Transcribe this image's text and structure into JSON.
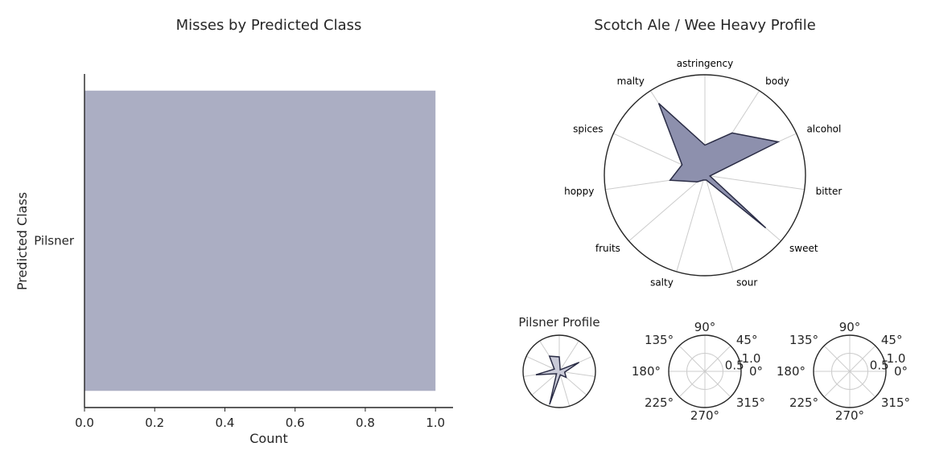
{
  "colors": {
    "bar": "#abaec3",
    "radar_fill": "#8d90ad",
    "radar_edge": "#2a2c45",
    "small_fill": "#c9cad8",
    "grid": "#cccccc",
    "axis": "#262626"
  },
  "chart_data": [
    {
      "type": "bar",
      "orientation": "horizontal",
      "title": "Misses by Predicted Class",
      "xlabel": "Count",
      "ylabel": "Predicted Class",
      "categories": [
        "Pilsner"
      ],
      "values": [
        1.0
      ],
      "xlim": [
        0,
        1.05
      ],
      "xticks": [
        "0.0",
        "0.2",
        "0.4",
        "0.6",
        "0.8",
        "1.0"
      ]
    },
    {
      "type": "radar",
      "title": "Scotch Ale / Wee Heavy Profile",
      "axes": [
        "astringency",
        "body",
        "alcohol",
        "bitter",
        "sweet",
        "sour",
        "salty",
        "fruits",
        "hoppy",
        "spices",
        "malty"
      ],
      "values": [
        0.3,
        0.5,
        0.8,
        0.05,
        0.8,
        0.05,
        0.05,
        0.1,
        0.35,
        0.25,
        0.85
      ],
      "rlim": [
        0,
        1
      ]
    },
    {
      "type": "radar",
      "title": "Pilsner Profile",
      "axes": [
        "astringency",
        "body",
        "alcohol",
        "bitter",
        "sweet",
        "sour",
        "salty",
        "fruits",
        "hoppy",
        "spices",
        "malty"
      ],
      "values": [
        0.4,
        0.05,
        0.6,
        0.15,
        0.25,
        0.1,
        0.95,
        0.1,
        0.65,
        0.15,
        0.5
      ],
      "rlim": [
        0,
        1
      ]
    },
    {
      "type": "polar",
      "title": "",
      "angle_ticks": [
        "0°",
        "45°",
        "90°",
        "135°",
        "180°",
        "225°",
        "270°",
        "315°"
      ],
      "radial_ticks": [
        "0.5",
        "1.0"
      ]
    },
    {
      "type": "polar",
      "title": "",
      "angle_ticks": [
        "0°",
        "45°",
        "90°",
        "135°",
        "180°",
        "225°",
        "270°",
        "315°"
      ],
      "radial_ticks": [
        "0.5",
        "1.0"
      ]
    }
  ]
}
